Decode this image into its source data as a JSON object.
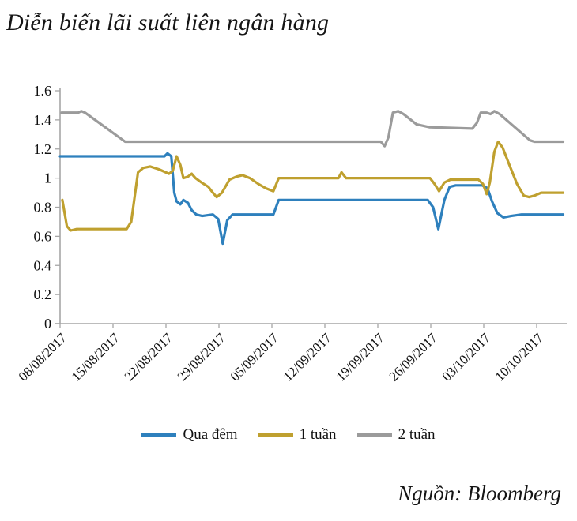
{
  "title": "Diễn biến lãi suất liên ngân hàng",
  "source": "Nguồn: Bloomberg",
  "chart_data": {
    "type": "line",
    "title": "Diễn biến lãi suất liên ngân hàng",
    "xlabel": "",
    "ylabel": "",
    "ylim": [
      0,
      1.6
    ],
    "ytick_labels": [
      "0",
      "0.2",
      "0.4",
      "0.6",
      "0.8",
      "1",
      "1.2",
      "1.4",
      "1.6"
    ],
    "yticks": [
      0,
      0.2,
      0.4,
      0.6,
      0.8,
      1,
      1.2,
      1.4,
      1.6
    ],
    "categories": [
      "08/08/2017",
      "15/08/2017",
      "22/08/2017",
      "29/08/2017",
      "05/09/2017",
      "12/09/2017",
      "19/09/2017",
      "26/09/2017",
      "03/10/2017",
      "10/10/2017"
    ],
    "category_days": [
      0,
      7,
      14,
      21,
      28,
      35,
      42,
      49,
      56,
      63
    ],
    "x_unit": "days since 08/08/2017",
    "x_max": 66.5,
    "grid": false,
    "legend_position": "bottom",
    "axis_color": "#A6A6A6",
    "series": [
      {
        "name": "Qua đêm",
        "color": "#2E80BD",
        "points": [
          [
            0,
            1.15
          ],
          [
            13.8,
            1.15
          ],
          [
            14.2,
            1.17
          ],
          [
            14.7,
            1.15
          ],
          [
            15.1,
            0.9
          ],
          [
            15.4,
            0.84
          ],
          [
            15.9,
            0.82
          ],
          [
            16.3,
            0.85
          ],
          [
            16.9,
            0.83
          ],
          [
            17.4,
            0.78
          ],
          [
            18.0,
            0.75
          ],
          [
            18.8,
            0.74
          ],
          [
            20.2,
            0.75
          ],
          [
            20.9,
            0.72
          ],
          [
            21.5,
            0.55
          ],
          [
            22.1,
            0.71
          ],
          [
            22.8,
            0.75
          ],
          [
            28.2,
            0.75
          ],
          [
            28.9,
            0.85
          ],
          [
            48.6,
            0.85
          ],
          [
            49.3,
            0.8
          ],
          [
            50.0,
            0.65
          ],
          [
            50.8,
            0.85
          ],
          [
            51.5,
            0.94
          ],
          [
            52.3,
            0.95
          ],
          [
            55.8,
            0.95
          ],
          [
            56.5,
            0.93
          ],
          [
            57.1,
            0.84
          ],
          [
            57.8,
            0.76
          ],
          [
            58.6,
            0.73
          ],
          [
            59.6,
            0.74
          ],
          [
            61.0,
            0.75
          ],
          [
            66.5,
            0.75
          ]
        ]
      },
      {
        "name": "1 tuần",
        "color": "#BFA02F",
        "points": [
          [
            0.3,
            0.85
          ],
          [
            0.9,
            0.67
          ],
          [
            1.4,
            0.64
          ],
          [
            2.2,
            0.65
          ],
          [
            8.8,
            0.65
          ],
          [
            9.4,
            0.7
          ],
          [
            10.3,
            1.04
          ],
          [
            11.0,
            1.07
          ],
          [
            11.9,
            1.08
          ],
          [
            13.1,
            1.06
          ],
          [
            14.4,
            1.03
          ],
          [
            14.9,
            1.05
          ],
          [
            15.4,
            1.15
          ],
          [
            15.9,
            1.09
          ],
          [
            16.3,
            1.0
          ],
          [
            16.9,
            1.01
          ],
          [
            17.4,
            1.03
          ],
          [
            17.9,
            1.0
          ],
          [
            18.7,
            0.97
          ],
          [
            19.6,
            0.94
          ],
          [
            20.2,
            0.9
          ],
          [
            20.7,
            0.87
          ],
          [
            21.4,
            0.9
          ],
          [
            22.4,
            0.99
          ],
          [
            23.3,
            1.01
          ],
          [
            24.1,
            1.02
          ],
          [
            25.1,
            1.0
          ],
          [
            26.2,
            0.96
          ],
          [
            27.2,
            0.93
          ],
          [
            28.2,
            0.91
          ],
          [
            28.9,
            1.0
          ],
          [
            36.8,
            1.0
          ],
          [
            37.2,
            1.04
          ],
          [
            37.8,
            1.0
          ],
          [
            48.9,
            1.0
          ],
          [
            49.5,
            0.96
          ],
          [
            50.1,
            0.91
          ],
          [
            50.8,
            0.97
          ],
          [
            51.6,
            0.99
          ],
          [
            55.3,
            0.99
          ],
          [
            55.9,
            0.96
          ],
          [
            56.4,
            0.89
          ],
          [
            56.8,
            0.97
          ],
          [
            57.4,
            1.18
          ],
          [
            57.9,
            1.25
          ],
          [
            58.5,
            1.21
          ],
          [
            59.4,
            1.09
          ],
          [
            60.4,
            0.96
          ],
          [
            61.3,
            0.88
          ],
          [
            62.0,
            0.87
          ],
          [
            62.7,
            0.88
          ],
          [
            63.6,
            0.9
          ],
          [
            66.5,
            0.9
          ]
        ]
      },
      {
        "name": "2 tuần",
        "color": "#9B9B9B",
        "points": [
          [
            0.2,
            1.45
          ],
          [
            2.4,
            1.45
          ],
          [
            2.8,
            1.46
          ],
          [
            3.3,
            1.45
          ],
          [
            8.6,
            1.25
          ],
          [
            42.4,
            1.25
          ],
          [
            42.9,
            1.22
          ],
          [
            43.4,
            1.28
          ],
          [
            44.0,
            1.45
          ],
          [
            44.7,
            1.46
          ],
          [
            45.4,
            1.44
          ],
          [
            47.1,
            1.37
          ],
          [
            48.8,
            1.35
          ],
          [
            54.5,
            1.34
          ],
          [
            55.1,
            1.38
          ],
          [
            55.6,
            1.45
          ],
          [
            56.4,
            1.45
          ],
          [
            56.9,
            1.44
          ],
          [
            57.4,
            1.46
          ],
          [
            58.1,
            1.44
          ],
          [
            62.1,
            1.26
          ],
          [
            62.7,
            1.25
          ],
          [
            66.5,
            1.25
          ]
        ]
      }
    ]
  }
}
